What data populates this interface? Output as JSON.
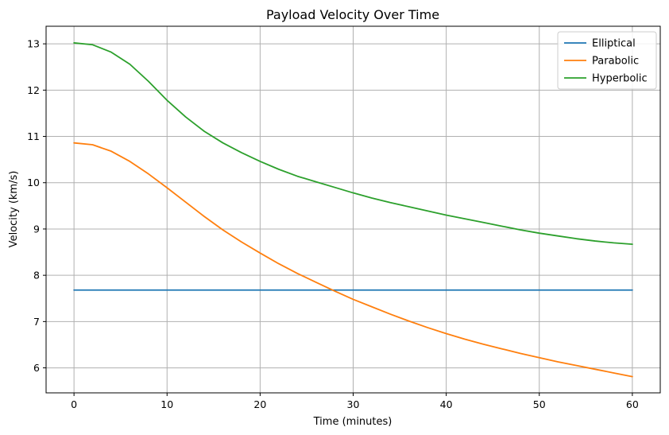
{
  "chart_data": {
    "type": "line",
    "title": "Payload Velocity Over Time",
    "xlabel": "Time (minutes)",
    "ylabel": "Velocity (km/s)",
    "xlim": [
      -3,
      63
    ],
    "ylim": [
      5.46,
      13.38
    ],
    "xticks": [
      0,
      10,
      20,
      30,
      40,
      50,
      60
    ],
    "yticks": [
      6,
      7,
      8,
      9,
      10,
      11,
      12,
      13
    ],
    "grid": true,
    "legend_position": "top-right",
    "x": [
      0,
      2,
      4,
      6,
      8,
      10,
      12,
      14,
      16,
      18,
      20,
      22,
      24,
      26,
      28,
      30,
      32,
      34,
      36,
      38,
      40,
      42,
      44,
      46,
      48,
      50,
      52,
      54,
      56,
      58,
      60
    ],
    "series": [
      {
        "name": "Elliptical",
        "color": "#1f77b4",
        "values": [
          7.68,
          7.68,
          7.68,
          7.68,
          7.68,
          7.68,
          7.68,
          7.68,
          7.68,
          7.68,
          7.68,
          7.68,
          7.68,
          7.68,
          7.68,
          7.68,
          7.68,
          7.68,
          7.68,
          7.68,
          7.68,
          7.68,
          7.68,
          7.68,
          7.68,
          7.68,
          7.68,
          7.68,
          7.68,
          7.68,
          7.68
        ]
      },
      {
        "name": "Parabolic",
        "color": "#ff7f0e",
        "values": [
          10.86,
          10.82,
          10.68,
          10.46,
          10.19,
          9.89,
          9.58,
          9.27,
          8.98,
          8.72,
          8.48,
          8.25,
          8.04,
          7.85,
          7.66,
          7.48,
          7.32,
          7.16,
          7.01,
          6.87,
          6.74,
          6.62,
          6.51,
          6.41,
          6.31,
          6.22,
          6.13,
          6.05,
          5.97,
          5.89,
          5.81
        ]
      },
      {
        "name": "Hyperbolic",
        "color": "#2ca02c",
        "values": [
          13.02,
          12.98,
          12.82,
          12.56,
          12.19,
          11.78,
          11.42,
          11.11,
          10.86,
          10.65,
          10.46,
          10.29,
          10.14,
          10.02,
          9.9,
          9.78,
          9.67,
          9.57,
          9.48,
          9.39,
          9.3,
          9.22,
          9.14,
          9.06,
          8.98,
          8.91,
          8.85,
          8.79,
          8.74,
          8.7,
          8.67
        ]
      }
    ]
  }
}
